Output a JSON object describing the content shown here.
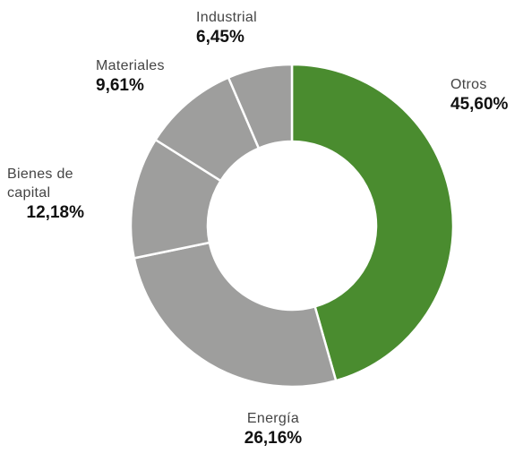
{
  "chart_data": {
    "type": "donut",
    "categories": [
      "Otros",
      "Energía",
      "Bienes de capital",
      "Materiales",
      "Industrial"
    ],
    "values": [
      45.6,
      26.16,
      12.18,
      9.61,
      6.45
    ],
    "value_labels": [
      "45,60%",
      "26,16%",
      "12,18%",
      "9,61%",
      "6,45%"
    ],
    "colors": [
      "#4a8c2f",
      "#9e9e9d",
      "#9e9e9d",
      "#9e9e9d",
      "#9e9e9d"
    ]
  }
}
